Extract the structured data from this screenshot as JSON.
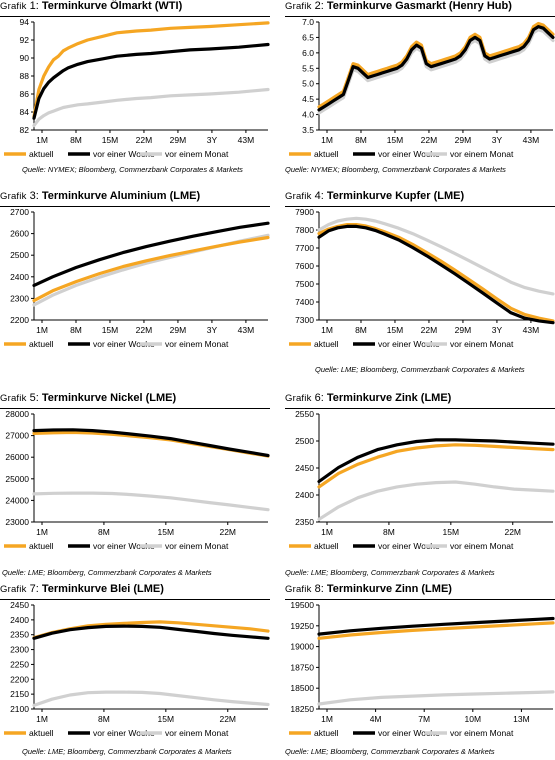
{
  "legend": {
    "aktuell": "aktuell",
    "woche": "vor einer Woche",
    "monat": "vor einem Monat"
  },
  "colors": {
    "aktuell": "#f5a623",
    "woche": "#000000",
    "monat": "#d0d0d0"
  },
  "sources": {
    "nymex": "Quelle: NYMEX; Bloomberg, Commerzbank Corporates & Markets",
    "lme": "Quelle: LME; Bloomberg, Commerzbank Corporates & Markets"
  },
  "chart_data": [
    {
      "type": "line",
      "label": "Grafik",
      "number": "1:",
      "title": "Terminkurve Ölmarkt (WTI)",
      "categories": [
        "1M",
        "8M",
        "15M",
        "22M",
        "29M",
        "3Y",
        "43M"
      ],
      "ylim": [
        82,
        94
      ],
      "yticks": [
        82,
        84,
        86,
        88,
        90,
        92,
        94
      ],
      "x": [
        1,
        2,
        3,
        4,
        5,
        6,
        7,
        8,
        10,
        12,
        15,
        18,
        20,
        22,
        25,
        29,
        33,
        37,
        43,
        49
      ],
      "series": [
        {
          "name": "aktuell",
          "values": [
            83.5,
            86.5,
            88.0,
            89.0,
            89.8,
            90.2,
            90.8,
            91.1,
            91.6,
            92.0,
            92.4,
            92.8,
            92.9,
            93.0,
            93.1,
            93.3,
            93.4,
            93.5,
            93.7,
            93.9
          ]
        },
        {
          "name": "vor einer Woche",
          "values": [
            83.3,
            85.5,
            86.6,
            87.3,
            87.8,
            88.2,
            88.6,
            88.9,
            89.3,
            89.6,
            89.9,
            90.2,
            90.3,
            90.4,
            90.5,
            90.7,
            90.9,
            91.0,
            91.2,
            91.5
          ]
        },
        {
          "name": "vor einem Monat",
          "values": [
            82.5,
            83.2,
            83.6,
            83.9,
            84.1,
            84.3,
            84.5,
            84.6,
            84.8,
            84.9,
            85.1,
            85.3,
            85.4,
            85.5,
            85.6,
            85.8,
            85.9,
            86.0,
            86.2,
            86.5
          ]
        }
      ]
    },
    {
      "type": "line",
      "label": "Grafik",
      "number": "2:",
      "title": "Terminkurve Gasmarkt (Henry Hub)",
      "categories": [
        "1M",
        "8M",
        "15M",
        "22M",
        "29M",
        "3Y",
        "43M"
      ],
      "ylim": [
        3.5,
        7.0
      ],
      "yticks": [
        3.5,
        4.0,
        4.5,
        5.0,
        5.5,
        6.0,
        6.5,
        7.0
      ],
      "x": [
        1,
        2,
        3,
        4,
        5,
        6,
        7,
        8,
        9,
        10,
        11,
        12,
        13,
        14,
        15,
        16,
        17,
        18,
        19,
        20,
        21,
        22,
        23,
        24,
        25,
        26,
        27,
        28,
        29,
        30,
        31,
        32,
        33,
        34,
        35,
        36,
        37,
        38,
        39,
        40,
        41,
        42,
        43,
        44,
        45,
        46,
        47,
        48,
        49
      ],
      "series": [
        {
          "name": "aktuell",
          "values": [
            4.25,
            4.35,
            4.45,
            4.55,
            4.65,
            4.75,
            5.2,
            5.65,
            5.6,
            5.45,
            5.3,
            5.35,
            5.4,
            5.45,
            5.5,
            5.55,
            5.6,
            5.7,
            5.9,
            6.2,
            6.35,
            6.25,
            5.75,
            5.65,
            5.7,
            5.75,
            5.8,
            5.85,
            5.9,
            6.0,
            6.2,
            6.5,
            6.6,
            6.5,
            6.0,
            5.9,
            5.95,
            6.0,
            6.05,
            6.1,
            6.15,
            6.2,
            6.3,
            6.5,
            6.85,
            6.95,
            6.9,
            6.75,
            6.6
          ]
        },
        {
          "name": "vor einer Woche",
          "values": [
            4.15,
            4.25,
            4.35,
            4.45,
            4.55,
            4.65,
            5.1,
            5.55,
            5.5,
            5.35,
            5.2,
            5.25,
            5.3,
            5.35,
            5.4,
            5.45,
            5.5,
            5.6,
            5.8,
            6.1,
            6.25,
            6.15,
            5.65,
            5.55,
            5.6,
            5.65,
            5.7,
            5.75,
            5.8,
            5.9,
            6.1,
            6.4,
            6.5,
            6.4,
            5.9,
            5.8,
            5.85,
            5.9,
            5.95,
            6.0,
            6.05,
            6.1,
            6.2,
            6.4,
            6.75,
            6.85,
            6.8,
            6.65,
            6.5
          ]
        },
        {
          "name": "vor einem Monat",
          "values": [
            4.05,
            4.15,
            4.25,
            4.35,
            4.45,
            4.55,
            5.0,
            5.45,
            5.4,
            5.25,
            5.1,
            5.15,
            5.2,
            5.25,
            5.3,
            5.35,
            5.4,
            5.5,
            5.7,
            6.0,
            6.15,
            6.05,
            5.55,
            5.45,
            5.5,
            5.55,
            5.6,
            5.65,
            5.7,
            5.8,
            6.0,
            6.3,
            6.4,
            6.3,
            5.8,
            5.7,
            5.75,
            5.8,
            5.85,
            5.9,
            5.95,
            6.0,
            6.1,
            6.3,
            6.65,
            6.75,
            6.7,
            6.55,
            6.4
          ]
        }
      ]
    },
    {
      "type": "line",
      "label": "Grafik",
      "number": "3:",
      "title": "Terminkurve Aluminium (LME)",
      "categories": [
        "1M",
        "8M",
        "15M",
        "22M",
        "29M",
        "3Y",
        "43M"
      ],
      "ylim": [
        2200,
        2700
      ],
      "yticks": [
        2200,
        2300,
        2400,
        2500,
        2600,
        2700
      ],
      "x": [
        1,
        5,
        10,
        15,
        20,
        25,
        30,
        35,
        40,
        45,
        51
      ],
      "series": [
        {
          "name": "aktuell",
          "values": [
            2290,
            2335,
            2378,
            2415,
            2447,
            2474,
            2498,
            2520,
            2541,
            2561,
            2582
          ]
        },
        {
          "name": "vor einer Woche",
          "values": [
            2360,
            2400,
            2443,
            2479,
            2512,
            2540,
            2565,
            2588,
            2609,
            2629,
            2648
          ]
        },
        {
          "name": "vor einem Monat",
          "values": [
            2270,
            2315,
            2360,
            2398,
            2432,
            2463,
            2490,
            2515,
            2540,
            2565,
            2592
          ]
        }
      ]
    },
    {
      "type": "line",
      "label": "Grafik",
      "number": "4:",
      "title": "Terminkurve Kupfer (LME)",
      "categories": [
        "1M",
        "8M",
        "15M",
        "22M",
        "29M",
        "3Y",
        "43M"
      ],
      "ylim": [
        7300,
        7900
      ],
      "yticks": [
        7300,
        7400,
        7500,
        7600,
        7700,
        7800,
        7900
      ],
      "x": [
        1,
        3,
        5,
        7,
        9,
        11,
        13,
        15,
        18,
        21,
        24,
        27,
        30,
        33,
        36,
        39,
        42,
        45,
        48,
        51
      ],
      "series": [
        {
          "name": "aktuell",
          "values": [
            7780,
            7805,
            7820,
            7830,
            7830,
            7822,
            7808,
            7790,
            7760,
            7720,
            7675,
            7628,
            7578,
            7525,
            7472,
            7418,
            7365,
            7330,
            7310,
            7295
          ]
        },
        {
          "name": "vor einer Woche",
          "values": [
            7760,
            7795,
            7812,
            7820,
            7820,
            7812,
            7798,
            7778,
            7745,
            7703,
            7657,
            7608,
            7557,
            7504,
            7450,
            7395,
            7340,
            7310,
            7295,
            7285
          ]
        },
        {
          "name": "vor einem Monat",
          "values": [
            7800,
            7830,
            7850,
            7860,
            7865,
            7860,
            7850,
            7835,
            7810,
            7780,
            7745,
            7708,
            7670,
            7630,
            7590,
            7550,
            7510,
            7480,
            7460,
            7445
          ]
        }
      ]
    },
    {
      "type": "line",
      "label": "Grafik",
      "number": "5:",
      "title": "Terminkurve Nickel (LME)",
      "categories": [
        "1M",
        "8M",
        "15M",
        "22M"
      ],
      "ylim": [
        23000,
        28000
      ],
      "yticks": [
        23000,
        24000,
        25000,
        26000,
        27000,
        28000
      ],
      "x": [
        1,
        3,
        5,
        7,
        9,
        11,
        13,
        15,
        17,
        19,
        21,
        23,
        25
      ],
      "series": [
        {
          "name": "aktuell",
          "values": [
            27100,
            27130,
            27150,
            27120,
            27060,
            26980,
            26900,
            26800,
            26650,
            26500,
            26350,
            26200,
            26050
          ]
        },
        {
          "name": "vor einer Woche",
          "values": [
            27230,
            27260,
            27270,
            27230,
            27160,
            27070,
            26970,
            26860,
            26700,
            26540,
            26380,
            26230,
            26080
          ]
        },
        {
          "name": "vor einem Monat",
          "values": [
            24300,
            24330,
            24340,
            24340,
            24320,
            24270,
            24200,
            24120,
            24010,
            23900,
            23790,
            23680,
            23570
          ]
        }
      ]
    },
    {
      "type": "line",
      "label": "Grafik",
      "number": "6:",
      "title": "Terminkurve Zink (LME)",
      "categories": [
        "1M",
        "8M",
        "15M",
        "22M"
      ],
      "ylim": [
        2350,
        2550
      ],
      "yticks": [
        2350,
        2400,
        2450,
        2500,
        2550
      ],
      "x": [
        1,
        3,
        5,
        7,
        9,
        11,
        13,
        15,
        17,
        19,
        21,
        23,
        25
      ],
      "series": [
        {
          "name": "aktuell",
          "values": [
            2415,
            2440,
            2457,
            2470,
            2481,
            2487,
            2491,
            2493,
            2492,
            2490,
            2488,
            2486,
            2484
          ]
        },
        {
          "name": "vor einer Woche",
          "values": [
            2425,
            2451,
            2470,
            2484,
            2493,
            2499,
            2502,
            2502,
            2501,
            2500,
            2498,
            2496,
            2494
          ]
        },
        {
          "name": "vor einem Monat",
          "values": [
            2355,
            2378,
            2395,
            2407,
            2415,
            2420,
            2423,
            2424,
            2420,
            2415,
            2411,
            2409,
            2407
          ]
        }
      ]
    },
    {
      "type": "line",
      "label": "Grafik",
      "number": "7:",
      "title": "Terminkurve Blei (LME)",
      "categories": [
        "1M",
        "8M",
        "15M",
        "22M"
      ],
      "ylim": [
        2100,
        2450
      ],
      "yticks": [
        2100,
        2150,
        2200,
        2250,
        2300,
        2350,
        2400,
        2450
      ],
      "x": [
        1,
        3,
        5,
        7,
        9,
        11,
        13,
        15,
        17,
        19,
        21,
        23,
        25,
        27
      ],
      "series": [
        {
          "name": "aktuell",
          "values": [
            2340,
            2357,
            2370,
            2380,
            2385,
            2388,
            2391,
            2393,
            2390,
            2385,
            2380,
            2375,
            2370,
            2362
          ]
        },
        {
          "name": "vor einer Woche",
          "values": [
            2338,
            2355,
            2367,
            2374,
            2378,
            2379,
            2378,
            2375,
            2368,
            2361,
            2354,
            2348,
            2343,
            2338
          ]
        },
        {
          "name": "vor einem Monat",
          "values": [
            2112,
            2133,
            2147,
            2155,
            2157,
            2157,
            2156,
            2152,
            2145,
            2138,
            2131,
            2125,
            2120,
            2115
          ]
        }
      ]
    },
    {
      "type": "line",
      "label": "Grafik",
      "number": "8:",
      "title": "Terminkurve Zinn (LME)",
      "categories": [
        "1M",
        "4M",
        "7M",
        "10M",
        "13M"
      ],
      "ylim": [
        18250,
        19500
      ],
      "yticks": [
        18250,
        18500,
        18750,
        19000,
        19250,
        19500
      ],
      "x": [
        1,
        3,
        5,
        7,
        9,
        11,
        13,
        15,
        16
      ],
      "series": [
        {
          "name": "aktuell",
          "values": [
            19100,
            19140,
            19170,
            19195,
            19215,
            19235,
            19255,
            19275,
            19285
          ]
        },
        {
          "name": "vor einer Woche",
          "values": [
            19150,
            19190,
            19220,
            19245,
            19268,
            19288,
            19308,
            19328,
            19338
          ]
        },
        {
          "name": "vor einem Monat",
          "values": [
            18310,
            18360,
            18390,
            18405,
            18420,
            18430,
            18440,
            18450,
            18455
          ]
        }
      ]
    }
  ]
}
